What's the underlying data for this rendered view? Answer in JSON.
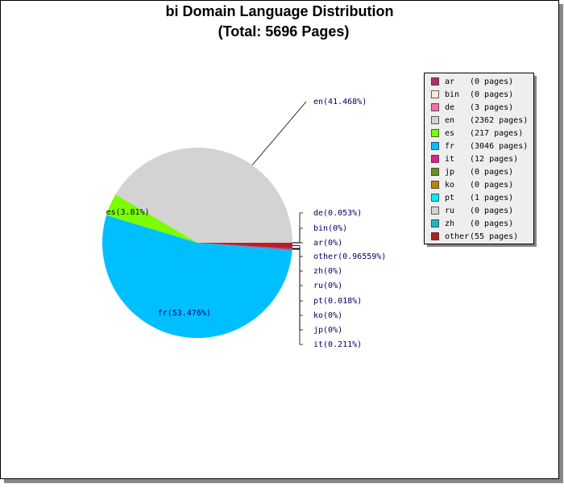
{
  "chart_data": {
    "type": "pie",
    "title": "bi Domain Language Distribution",
    "subtitle": "(Total: 5696 Pages)",
    "categories": [
      "ar",
      "bin",
      "de",
      "en",
      "es",
      "fr",
      "it",
      "jp",
      "ko",
      "pt",
      "ru",
      "zh",
      "other"
    ],
    "values": [
      0,
      0,
      0.053,
      41.468,
      3.81,
      53.476,
      0.211,
      0,
      0,
      0.018,
      0,
      0,
      0.96559
    ],
    "value_labels": [
      "ar(0%)",
      "bin(0%)",
      "de(0.053%)",
      "en(41.468%)",
      "es(3.81%)",
      "fr(53.476%)",
      "it(0.211%)",
      "jp(0%)",
      "ko(0%)",
      "pt(0.018%)",
      "ru(0%)",
      "zh(0%)",
      "other(0.96559%)"
    ],
    "legend_labels": [
      "(0 pages)",
      "(0 pages)",
      "(3 pages)",
      "(2362 pages)",
      "(217 pages)",
      "(3046 pages)",
      "(12 pages)",
      "(0 pages)",
      "(0 pages)",
      "(1 pages)",
      "(0 pages)",
      "(0 pages)",
      "(55 pages)"
    ],
    "colors": [
      "#b03060",
      "#faebd7",
      "#f070b0",
      "#d3d3d3",
      "#7cfc00",
      "#00bfff",
      "#e0208c",
      "#6b8e23",
      "#b8860b",
      "#00f0f0",
      "#d3d3d3",
      "#20b8c8",
      "#b22222"
    ],
    "legend": "right"
  }
}
